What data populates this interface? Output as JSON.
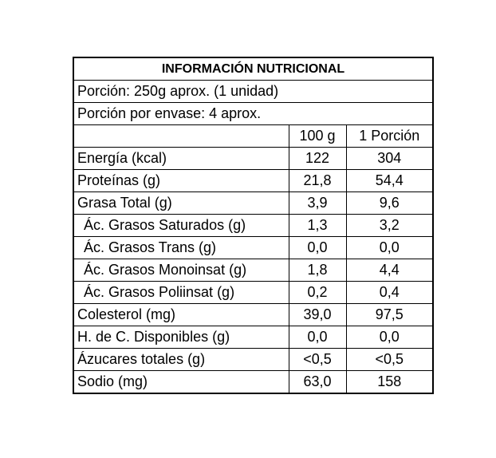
{
  "title": "INFORMACIÓN NUTRICIONAL",
  "portion": "Porción: 250g aprox.  (1 unidad)",
  "servings": "Porción por envase: 4 aprox.",
  "headers": {
    "per100g": "100 g",
    "perPortion": "1 Porción"
  },
  "rows": [
    {
      "name": "Energía (kcal)",
      "per100g": "122",
      "perPortion": "304"
    },
    {
      "name": "Proteínas (g)",
      "per100g": "21,8",
      "perPortion": "54,4"
    },
    {
      "name": "Grasa Total (g)",
      "per100g": "3,9",
      "perPortion": "9,6"
    },
    {
      "name": "Ác. Grasos Saturados (g)",
      "per100g": "1,3",
      "perPortion": "3,2"
    },
    {
      "name": "Ác. Grasos Trans (g)",
      "per100g": "0,0",
      "perPortion": "0,0"
    },
    {
      "name": "Ác. Grasos Monoinsat (g)",
      "per100g": "1,8",
      "perPortion": "4,4"
    },
    {
      "name": "Ác. Grasos Poliinsat (g)",
      "per100g": "0,2",
      "perPortion": "0,4"
    },
    {
      "name": "Colesterol (mg)",
      "per100g": "39,0",
      "perPortion": "97,5"
    },
    {
      "name": "H. de C. Disponibles (g)",
      "per100g": "0,0",
      "perPortion": "0,0"
    },
    {
      "name": "Ázucares totales (g)",
      "per100g": "<0,5",
      "perPortion": "<0,5"
    },
    {
      "name": "Sodio (mg)",
      "per100g": "63,0",
      "perPortion": "158"
    }
  ]
}
